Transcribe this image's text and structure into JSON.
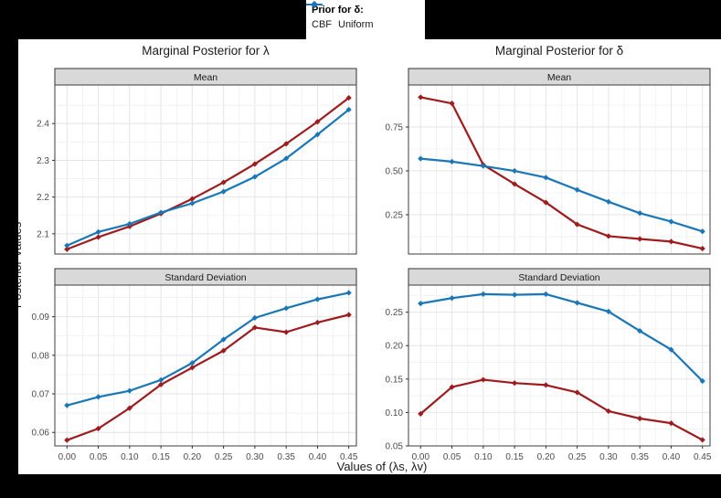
{
  "legend": {
    "title": "Prior for δ:",
    "items": [
      {
        "label": "CBF",
        "color": "#9E1B1E"
      },
      {
        "label": "Uniform",
        "color": "#1977B8"
      }
    ]
  },
  "columns": [
    {
      "title": "Marginal Posterior for λ"
    },
    {
      "title": "Marginal Posterior for δ"
    }
  ],
  "facets": {
    "mean": "Mean",
    "sd": "Standard Deviation"
  },
  "axes": {
    "x_title": "Values of (λs, λv)",
    "y_title": "Posterior Values",
    "x_tick_labels": [
      "0.00",
      "0.05",
      "0.10",
      "0.15",
      "0.20",
      "0.25",
      "0.30",
      "0.35",
      "0.40",
      "0.45"
    ]
  },
  "chart_data": [
    {
      "id": "lambda-mean",
      "type": "line",
      "column_title": "Marginal Posterior for λ",
      "facet": "Mean",
      "x": [
        0.0,
        0.05,
        0.1,
        0.15,
        0.2,
        0.25,
        0.3,
        0.35,
        0.4,
        0.45
      ],
      "ylim": [
        2.045,
        2.505
      ],
      "yticks": [
        2.1,
        2.2,
        2.3,
        2.4
      ],
      "ytick_labels": [
        "2.1",
        "2.2",
        "2.3",
        "2.4"
      ],
      "series": [
        {
          "name": "CBF",
          "color": "#9E1B1E",
          "values": [
            2.058,
            2.091,
            2.12,
            2.155,
            2.195,
            2.24,
            2.29,
            2.345,
            2.405,
            2.47
          ]
        },
        {
          "name": "Uniform",
          "color": "#1977B8",
          "values": [
            2.068,
            2.105,
            2.127,
            2.158,
            2.183,
            2.215,
            2.255,
            2.305,
            2.37,
            2.438
          ]
        }
      ]
    },
    {
      "id": "delta-mean",
      "type": "line",
      "column_title": "Marginal Posterior for δ",
      "facet": "Mean",
      "x": [
        0.0,
        0.05,
        0.1,
        0.15,
        0.2,
        0.25,
        0.3,
        0.35,
        0.4,
        0.45
      ],
      "ylim": [
        0.026,
        0.99
      ],
      "yticks": [
        0.25,
        0.5,
        0.75
      ],
      "ytick_labels": [
        "0.25",
        "0.50",
        "0.75"
      ],
      "series": [
        {
          "name": "CBF",
          "color": "#9E1B1E",
          "values": [
            0.92,
            0.885,
            0.535,
            0.425,
            0.32,
            0.195,
            0.128,
            0.112,
            0.097,
            0.057
          ]
        },
        {
          "name": "Uniform",
          "color": "#1977B8",
          "values": [
            0.57,
            0.553,
            0.528,
            0.5,
            0.462,
            0.392,
            0.324,
            0.259,
            0.211,
            0.155
          ]
        }
      ]
    },
    {
      "id": "lambda-sd",
      "type": "line",
      "column_title": "Marginal Posterior for λ",
      "facet": "Standard Deviation",
      "x": [
        0.0,
        0.05,
        0.1,
        0.15,
        0.2,
        0.25,
        0.3,
        0.35,
        0.4,
        0.45
      ],
      "ylim": [
        0.0565,
        0.0982
      ],
      "yticks": [
        0.06,
        0.07,
        0.08,
        0.09
      ],
      "ytick_labels": [
        "0.06",
        "0.07",
        "0.08",
        "0.09"
      ],
      "series": [
        {
          "name": "CBF",
          "color": "#9E1B1E",
          "values": [
            0.058,
            0.061,
            0.0663,
            0.0724,
            0.0768,
            0.0812,
            0.0872,
            0.086,
            0.0885,
            0.0905
          ]
        },
        {
          "name": "Uniform",
          "color": "#1977B8",
          "values": [
            0.067,
            0.0692,
            0.0708,
            0.0736,
            0.078,
            0.0841,
            0.0897,
            0.0922,
            0.0945,
            0.0962
          ]
        }
      ]
    },
    {
      "id": "delta-sd",
      "type": "line",
      "column_title": "Marginal Posterior for δ",
      "facet": "Standard Deviation",
      "x": [
        0.0,
        0.05,
        0.1,
        0.15,
        0.2,
        0.25,
        0.3,
        0.35,
        0.4,
        0.45
      ],
      "ylim": [
        0.05,
        0.2905
      ],
      "yticks": [
        0.05,
        0.1,
        0.15,
        0.2,
        0.25
      ],
      "ytick_labels": [
        "0.05",
        "0.10",
        "0.15",
        "0.20",
        "0.25"
      ],
      "series": [
        {
          "name": "CBF",
          "color": "#9E1B1E",
          "values": [
            0.098,
            0.138,
            0.149,
            0.144,
            0.141,
            0.13,
            0.102,
            0.091,
            0.084,
            0.059
          ]
        },
        {
          "name": "Uniform",
          "color": "#1977B8",
          "values": [
            0.263,
            0.271,
            0.277,
            0.276,
            0.277,
            0.264,
            0.251,
            0.222,
            0.194,
            0.147
          ]
        }
      ]
    }
  ]
}
